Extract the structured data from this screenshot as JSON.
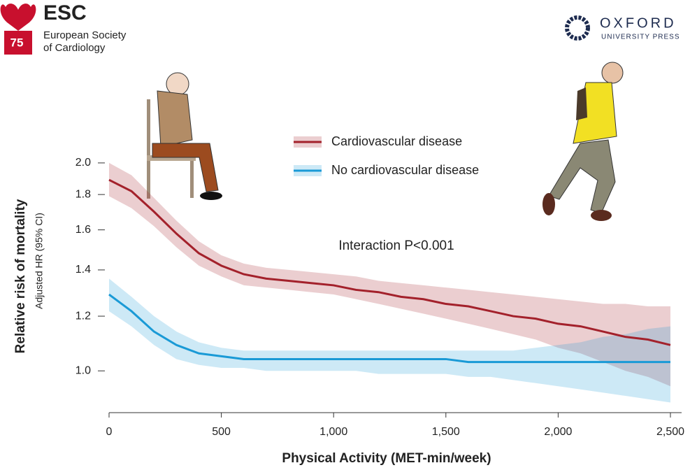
{
  "header": {
    "esc_logo": "ESC",
    "esc_line1": "European Society",
    "esc_line2": "of Cardiology",
    "esc_badge": "75",
    "oup_line1": "OXFORD",
    "oup_line2": "UNIVERSITY PRESS"
  },
  "chart_data": {
    "type": "line",
    "ylabel": "Relative risk of mortality",
    "ylabel_sub": "Adjusted HR (95% CI)",
    "xlabel": "Physical Activity (MET-min/week)",
    "annotation": "Interaction P<0.001",
    "log_scale": true,
    "x": [
      0,
      100,
      200,
      300,
      400,
      500,
      600,
      700,
      800,
      900,
      1000,
      1100,
      1200,
      1300,
      1400,
      1500,
      1600,
      1700,
      1800,
      1900,
      2000,
      2100,
      2200,
      2300,
      2400,
      2500
    ],
    "xlim": [
      0,
      2500
    ],
    "xticks": [
      0,
      500,
      {
        "value": 1000,
        "label": "1,000"
      },
      {
        "value": 1500,
        "label": "1,500"
      },
      {
        "value": 2000,
        "label": "2,000"
      },
      {
        "value": 2500,
        "label": "2,500"
      }
    ],
    "ylim": [
      0.87,
      2.1
    ],
    "yticks": [
      {
        "value": 1,
        "label": "1.0"
      },
      1.2,
      1.4,
      1.6,
      1.8,
      {
        "value": 2,
        "label": "2.0"
      }
    ],
    "series": [
      {
        "name": "Cardiovascular disease",
        "color": "#a3212b",
        "values": [
          1.89,
          1.82,
          1.7,
          1.58,
          1.48,
          1.42,
          1.38,
          1.36,
          1.35,
          1.34,
          1.33,
          1.31,
          1.3,
          1.28,
          1.27,
          1.25,
          1.24,
          1.22,
          1.2,
          1.19,
          1.17,
          1.16,
          1.14,
          1.12,
          1.11,
          1.09
        ],
        "upper": [
          2.0,
          1.92,
          1.78,
          1.65,
          1.54,
          1.47,
          1.43,
          1.41,
          1.4,
          1.39,
          1.38,
          1.37,
          1.35,
          1.34,
          1.33,
          1.32,
          1.31,
          1.3,
          1.29,
          1.28,
          1.27,
          1.26,
          1.25,
          1.25,
          1.24,
          1.24
        ],
        "lower": [
          1.79,
          1.72,
          1.62,
          1.51,
          1.42,
          1.37,
          1.33,
          1.32,
          1.31,
          1.3,
          1.29,
          1.27,
          1.25,
          1.23,
          1.21,
          1.19,
          1.17,
          1.15,
          1.13,
          1.11,
          1.08,
          1.06,
          1.03,
          1.0,
          0.98,
          0.95
        ]
      },
      {
        "name": "No cardiovascular disease",
        "color": "#1a9ad6",
        "values": [
          1.29,
          1.22,
          1.14,
          1.09,
          1.06,
          1.05,
          1.04,
          1.04,
          1.04,
          1.04,
          1.04,
          1.04,
          1.04,
          1.04,
          1.04,
          1.04,
          1.03,
          1.03,
          1.03,
          1.03,
          1.03,
          1.03,
          1.03,
          1.03,
          1.03,
          1.03
        ],
        "upper": [
          1.36,
          1.28,
          1.2,
          1.14,
          1.1,
          1.08,
          1.07,
          1.07,
          1.07,
          1.07,
          1.07,
          1.07,
          1.07,
          1.07,
          1.07,
          1.07,
          1.07,
          1.07,
          1.07,
          1.08,
          1.09,
          1.1,
          1.12,
          1.13,
          1.15,
          1.16
        ],
        "lower": [
          1.22,
          1.16,
          1.09,
          1.04,
          1.02,
          1.01,
          1.01,
          1.0,
          1.0,
          1.0,
          1.0,
          1.0,
          0.99,
          0.99,
          0.99,
          0.99,
          0.98,
          0.98,
          0.97,
          0.96,
          0.95,
          0.94,
          0.93,
          0.92,
          0.91,
          0.9
        ]
      }
    ]
  }
}
